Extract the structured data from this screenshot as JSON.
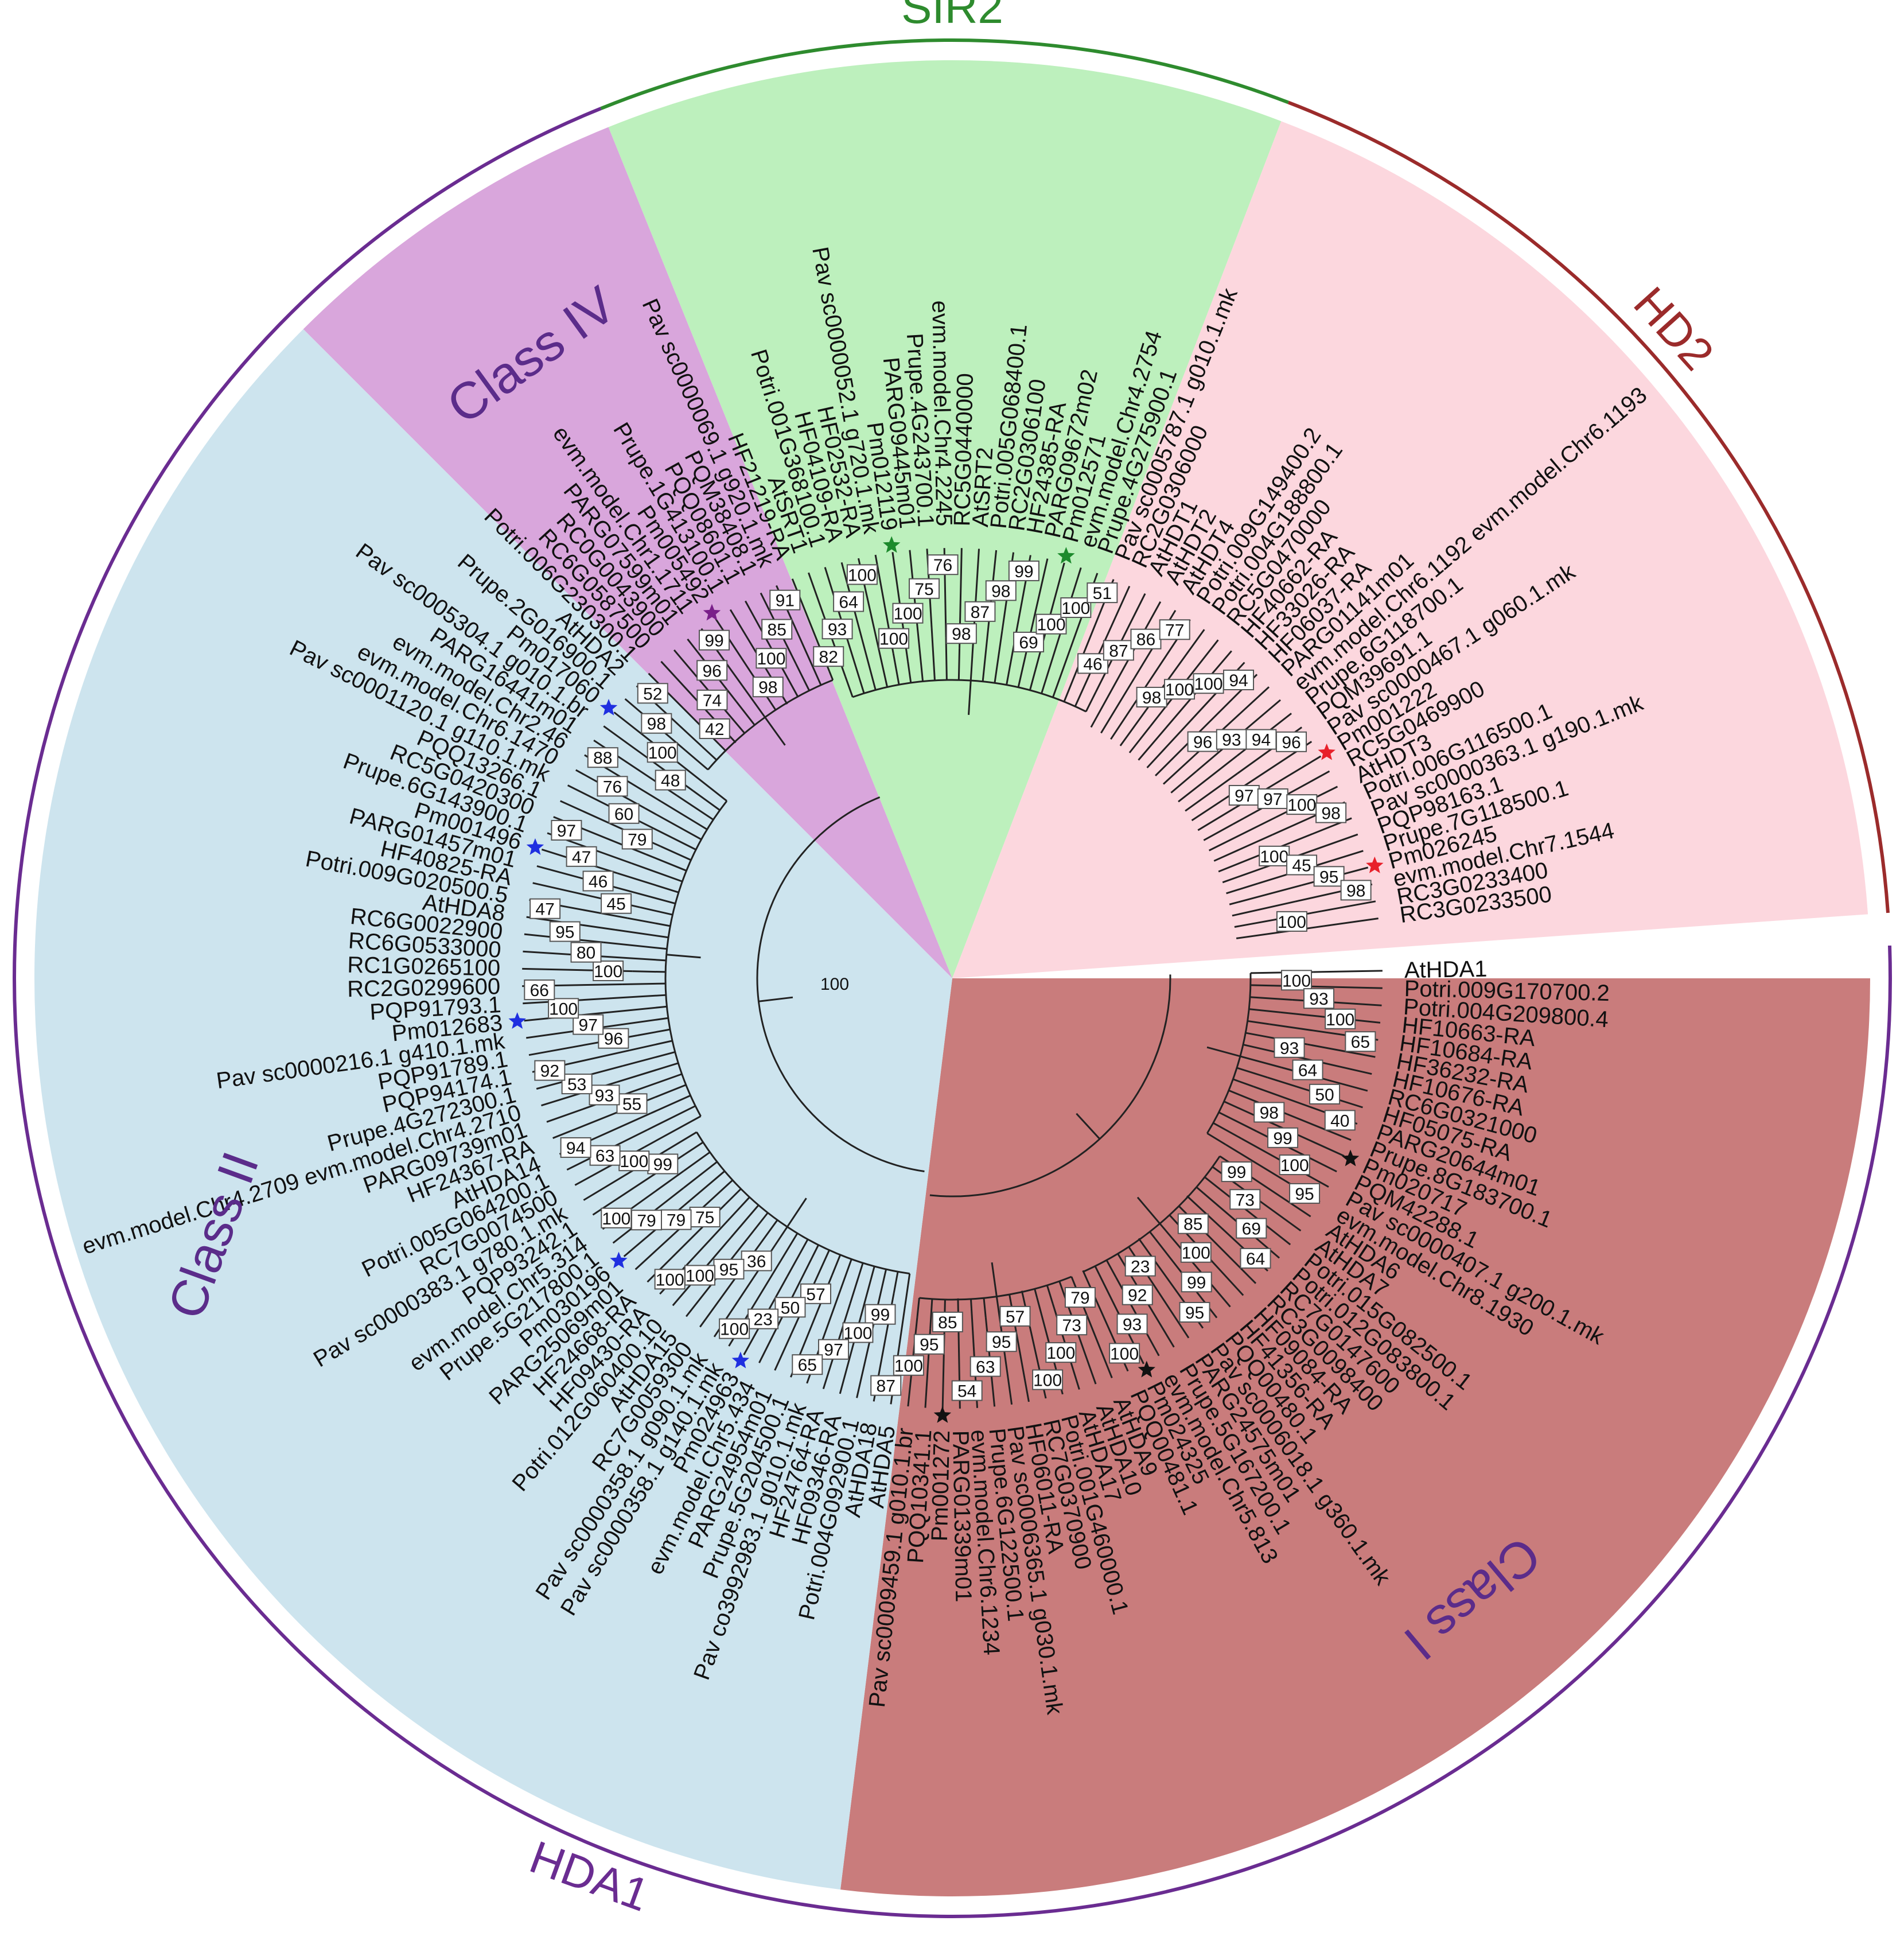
{
  "tree": {
    "root_label": "100",
    "families": [
      {
        "id": "sir2",
        "label": "SIR2",
        "color": "#2e8b2e"
      },
      {
        "id": "hd2",
        "label": "HD2",
        "color": "#9b2b2b"
      },
      {
        "id": "hda1",
        "label": "HDA1",
        "color": "#6a2c91"
      }
    ],
    "clades": [
      {
        "id": "class-iv",
        "label": "Class IV",
        "fill": "#d9a6dc"
      },
      {
        "id": "sir2",
        "label": "",
        "fill": "#bdf0bd"
      },
      {
        "id": "hd2",
        "label": "",
        "fill": "#fcd7de"
      },
      {
        "id": "class-i",
        "label": "Class I",
        "fill": "#c97c7c"
      },
      {
        "id": "class-ii",
        "label": "Class II",
        "fill": "#cde4ee"
      }
    ],
    "leaves": [
      {
        "label": "AtHDA1",
        "marker": ""
      },
      {
        "label": "Potri.009G170700.2",
        "marker": ""
      },
      {
        "label": "Potri.004G209800.4",
        "marker": ""
      },
      {
        "label": "HF10663-RA",
        "marker": ""
      },
      {
        "label": "HF10684-RA",
        "marker": ""
      },
      {
        "label": "HF36232-RA",
        "marker": ""
      },
      {
        "label": "HF10676-RA",
        "marker": ""
      },
      {
        "label": "RC6G0321000",
        "marker": ""
      },
      {
        "label": "HF05075-RA",
        "marker": ""
      },
      {
        "label": "PARG20644m01",
        "marker": ""
      },
      {
        "label": "Prupe.8G183700.1",
        "marker": ""
      },
      {
        "label": "Pm020717",
        "marker": "black"
      },
      {
        "label": "PQM42288.1",
        "marker": ""
      },
      {
        "label": "Pav sc0000407.1 g200.1.mk",
        "marker": ""
      },
      {
        "label": "evm.model.Chr8.1930",
        "marker": ""
      },
      {
        "label": "AtHDA6",
        "marker": ""
      },
      {
        "label": "AtHDA7",
        "marker": ""
      },
      {
        "label": "Potri.015G082500.1",
        "marker": ""
      },
      {
        "label": "Potri.012G083800.1",
        "marker": ""
      },
      {
        "label": "RC7G0147600",
        "marker": ""
      },
      {
        "label": "RC3G0098400",
        "marker": ""
      },
      {
        "label": "HF09084-RA",
        "marker": ""
      },
      {
        "label": "HF41356-RA",
        "marker": ""
      },
      {
        "label": "PQQ00480.1",
        "marker": ""
      },
      {
        "label": "Pav sc0006018.1 g360.1.mk",
        "marker": ""
      },
      {
        "label": "PARG24575m01",
        "marker": ""
      },
      {
        "label": "Prupe.5G167200.1",
        "marker": ""
      },
      {
        "label": "evm.model.Chr5.813",
        "marker": ""
      },
      {
        "label": "Pm024325",
        "marker": "black"
      },
      {
        "label": "PQQ00481.1",
        "marker": ""
      },
      {
        "label": "AtHDA9",
        "marker": ""
      },
      {
        "label": "AtHDA10",
        "marker": ""
      },
      {
        "label": "AtHDA17",
        "marker": ""
      },
      {
        "label": "Potri.001G460000.1",
        "marker": ""
      },
      {
        "label": "RC7G0370900",
        "marker": ""
      },
      {
        "label": "HF06011-RA",
        "marker": ""
      },
      {
        "label": "Pav sc0006365.1 g030.1.mk",
        "marker": ""
      },
      {
        "label": "Prupe.6G122500.1",
        "marker": ""
      },
      {
        "label": "evm.model.Chr6.1234",
        "marker": ""
      },
      {
        "label": "PARG01339m01",
        "marker": ""
      },
      {
        "label": "Pm001272",
        "marker": "black"
      },
      {
        "label": "PQQ10341.1",
        "marker": ""
      },
      {
        "label": "Pav sc0009459.1 g010.1.br",
        "marker": ""
      },
      {
        "label": "AtHDA5",
        "marker": ""
      },
      {
        "label": "AtHDA18",
        "marker": ""
      },
      {
        "label": "Potri.004G092900.1",
        "marker": ""
      },
      {
        "label": "HF09346-RA",
        "marker": ""
      },
      {
        "label": "HF24764-RA",
        "marker": ""
      },
      {
        "label": "Pav co3992983.1 g010.1.mk",
        "marker": ""
      },
      {
        "label": "Prupe.5G204500.1",
        "marker": ""
      },
      {
        "label": "PARG24954m01",
        "marker": ""
      },
      {
        "label": "evm.model.Chr5.434",
        "marker": ""
      },
      {
        "label": "Pm024963",
        "marker": "blue"
      },
      {
        "label": "Pav sc0000358.1 g140.1.mk",
        "marker": ""
      },
      {
        "label": "Pav sc0000358.1 g090.1.mk",
        "marker": ""
      },
      {
        "label": "RC7G0059300",
        "marker": ""
      },
      {
        "label": "AtHDA15",
        "marker": ""
      },
      {
        "label": "Potri.012G060400.10",
        "marker": ""
      },
      {
        "label": "HF09430-RA",
        "marker": ""
      },
      {
        "label": "HF24668-RA",
        "marker": ""
      },
      {
        "label": "PARG25069m01",
        "marker": ""
      },
      {
        "label": "Pm030196",
        "marker": "blue"
      },
      {
        "label": "Prupe.5G217800.1",
        "marker": ""
      },
      {
        "label": "evm.model.Chr5.314",
        "marker": ""
      },
      {
        "label": "PQP93242.1",
        "marker": ""
      },
      {
        "label": "Pav sc0000383.1 g780.1.mk",
        "marker": ""
      },
      {
        "label": "RC7G0074500",
        "marker": ""
      },
      {
        "label": "Potri.005G064200.1",
        "marker": ""
      },
      {
        "label": "AtHDA14",
        "marker": ""
      },
      {
        "label": "HF24367-RA",
        "marker": ""
      },
      {
        "label": "PARG09739m01",
        "marker": ""
      },
      {
        "label": "evm.model.Chr4.2709 evm.model.Chr4.2710",
        "marker": ""
      },
      {
        "label": "Prupe.4G272300.1",
        "marker": ""
      },
      {
        "label": "PQP94174.1",
        "marker": ""
      },
      {
        "label": "PQP91789.1",
        "marker": ""
      },
      {
        "label": "Pav sc0000216.1 g410.1.mk",
        "marker": ""
      },
      {
        "label": "Pm012683",
        "marker": "blue"
      },
      {
        "label": "PQP91793.1",
        "marker": ""
      },
      {
        "label": "RC2G0299600",
        "marker": ""
      },
      {
        "label": "RC1G0265100",
        "marker": ""
      },
      {
        "label": "RC6G0533000",
        "marker": ""
      },
      {
        "label": "RC6G0022900",
        "marker": ""
      },
      {
        "label": "AtHDA8",
        "marker": ""
      },
      {
        "label": "Potri.009G020500.5",
        "marker": ""
      },
      {
        "label": "HF40825-RA",
        "marker": ""
      },
      {
        "label": "PARG01457m01",
        "marker": ""
      },
      {
        "label": "Pm001496",
        "marker": "blue"
      },
      {
        "label": "Prupe.6G143900.1",
        "marker": ""
      },
      {
        "label": "RC5G0420300",
        "marker": ""
      },
      {
        "label": "PQQ13266.1",
        "marker": ""
      },
      {
        "label": "Pav sc0001120.1 g110.1.mk",
        "marker": ""
      },
      {
        "label": "evm.model.Chr6.1470",
        "marker": ""
      },
      {
        "label": "evm.model.Chr2.46",
        "marker": ""
      },
      {
        "label": "PARG16441m01",
        "marker": ""
      },
      {
        "label": "Pav sc0005304.1 g010.1.br",
        "marker": ""
      },
      {
        "label": "Pm017060",
        "marker": "blue"
      },
      {
        "label": "Prupe.2G016900.1",
        "marker": ""
      },
      {
        "label": "AtHDA2",
        "marker": ""
      },
      {
        "label": "Potri.006G230300.1",
        "marker": ""
      },
      {
        "label": "RC6G0587500",
        "marker": ""
      },
      {
        "label": "RC0G0043900",
        "marker": ""
      },
      {
        "label": "PARG07599m01",
        "marker": ""
      },
      {
        "label": "evm.model.Chr1.1711",
        "marker": ""
      },
      {
        "label": "Pm005492",
        "marker": "purple"
      },
      {
        "label": "Prupe.1G413100.1",
        "marker": ""
      },
      {
        "label": "PQQ08601.1",
        "marker": ""
      },
      {
        "label": "PQM38408.1",
        "marker": ""
      },
      {
        "label": "Pav sc0000069.1 g920.1.mk",
        "marker": ""
      },
      {
        "label": "HF21219-RA",
        "marker": ""
      },
      {
        "label": "AtSRT1",
        "marker": ""
      },
      {
        "label": "Potri.001G368100.1",
        "marker": ""
      },
      {
        "label": "HF04109-RA",
        "marker": ""
      },
      {
        "label": "HF02532-RA",
        "marker": ""
      },
      {
        "label": "Pav sc0000052.1 g720.1.mk",
        "marker": ""
      },
      {
        "label": "Pm012119",
        "marker": "green"
      },
      {
        "label": "PARG09445m01",
        "marker": ""
      },
      {
        "label": "Prupe.4G243700.1",
        "marker": ""
      },
      {
        "label": "evm.model.Chr4.2245",
        "marker": ""
      },
      {
        "label": "RC5G0440000",
        "marker": ""
      },
      {
        "label": "AtSRT2",
        "marker": ""
      },
      {
        "label": "Potri.005G068400.1",
        "marker": ""
      },
      {
        "label": "RC2G0306100",
        "marker": ""
      },
      {
        "label": "HF24385-RA",
        "marker": ""
      },
      {
        "label": "PARG09672m02",
        "marker": ""
      },
      {
        "label": "Pm012571",
        "marker": "green"
      },
      {
        "label": "evm.model.Chr4.2754",
        "marker": ""
      },
      {
        "label": "Prupe.4G275900.1",
        "marker": ""
      },
      {
        "label": "Pav sc0005787.1 g010.1.mk",
        "marker": ""
      },
      {
        "label": "RC2G0306000",
        "marker": ""
      },
      {
        "label": "AtHDT1",
        "marker": ""
      },
      {
        "label": "AtHDT2",
        "marker": ""
      },
      {
        "label": "AtHDT4",
        "marker": ""
      },
      {
        "label": "Potri.009G149400.2",
        "marker": ""
      },
      {
        "label": "Potri.004G188800.1",
        "marker": ""
      },
      {
        "label": "RC5G0470000",
        "marker": ""
      },
      {
        "label": "HF40662-RA",
        "marker": ""
      },
      {
        "label": "HF33026-RA",
        "marker": ""
      },
      {
        "label": "HF06037-RA",
        "marker": ""
      },
      {
        "label": "PARG01141m01",
        "marker": ""
      },
      {
        "label": "evm.model.Chr6.1192 evm.model.Chr6.1193",
        "marker": ""
      },
      {
        "label": "Prupe.6G118700.1",
        "marker": ""
      },
      {
        "label": "PQM39691.1",
        "marker": ""
      },
      {
        "label": "Pav sc0000467.1 g060.1.mk",
        "marker": ""
      },
      {
        "label": "Pm001222",
        "marker": "red"
      },
      {
        "label": "RC5G0469900",
        "marker": ""
      },
      {
        "label": "AtHDT3",
        "marker": ""
      },
      {
        "label": "Potri.006G116500.1",
        "marker": ""
      },
      {
        "label": "Pav sc0000363.1 g190.1.mk",
        "marker": ""
      },
      {
        "label": "PQP98163.1",
        "marker": ""
      },
      {
        "label": "Prupe.7G118500.1",
        "marker": ""
      },
      {
        "label": "Pm026245",
        "marker": "red"
      },
      {
        "label": "evm.model.Chr7.1544",
        "marker": ""
      },
      {
        "label": "RC3G0233400",
        "marker": ""
      },
      {
        "label": "RC3G0233500",
        "marker": ""
      }
    ],
    "bootstrap_values": [
      "100",
      "93",
      "100",
      "65",
      "93",
      "64",
      "50",
      "40",
      "98",
      "99",
      "100",
      "95",
      "99",
      "73",
      "69",
      "64",
      "85",
      "100",
      "99",
      "95",
      "23",
      "92",
      "93",
      "100",
      "79",
      "73",
      "100",
      "100",
      "57",
      "95",
      "63",
      "54",
      "85",
      "95",
      "100",
      "87",
      "99",
      "100",
      "97",
      "65",
      "57",
      "50",
      "23",
      "100",
      "36",
      "95",
      "100",
      "100",
      "75",
      "79",
      "79",
      "100",
      "99",
      "100",
      "63",
      "94",
      "55",
      "93",
      "53",
      "92",
      "96",
      "97",
      "100",
      "66",
      "100",
      "80",
      "95",
      "47",
      "45",
      "46",
      "47",
      "97",
      "79",
      "60",
      "76",
      "88",
      "48",
      "100",
      "98",
      "52",
      "42",
      "74",
      "96",
      "99",
      "98",
      "100",
      "85",
      "91",
      "82",
      "93",
      "64",
      "100",
      "100",
      "100",
      "75",
      "76",
      "98",
      "87",
      "98",
      "99",
      "69",
      "100",
      "100",
      "51",
      "46",
      "87",
      "86",
      "77",
      "98",
      "100",
      "100",
      "94",
      "96",
      "93",
      "94",
      "96",
      "97",
      "97",
      "100",
      "98",
      "100",
      "45",
      "95",
      "98",
      "100"
    ],
    "marker_colors": {
      "black": "#111111",
      "blue": "#1f2fe0",
      "red": "#e8202a",
      "green": "#1c8a2c",
      "purple": "#7a1f8a"
    }
  }
}
